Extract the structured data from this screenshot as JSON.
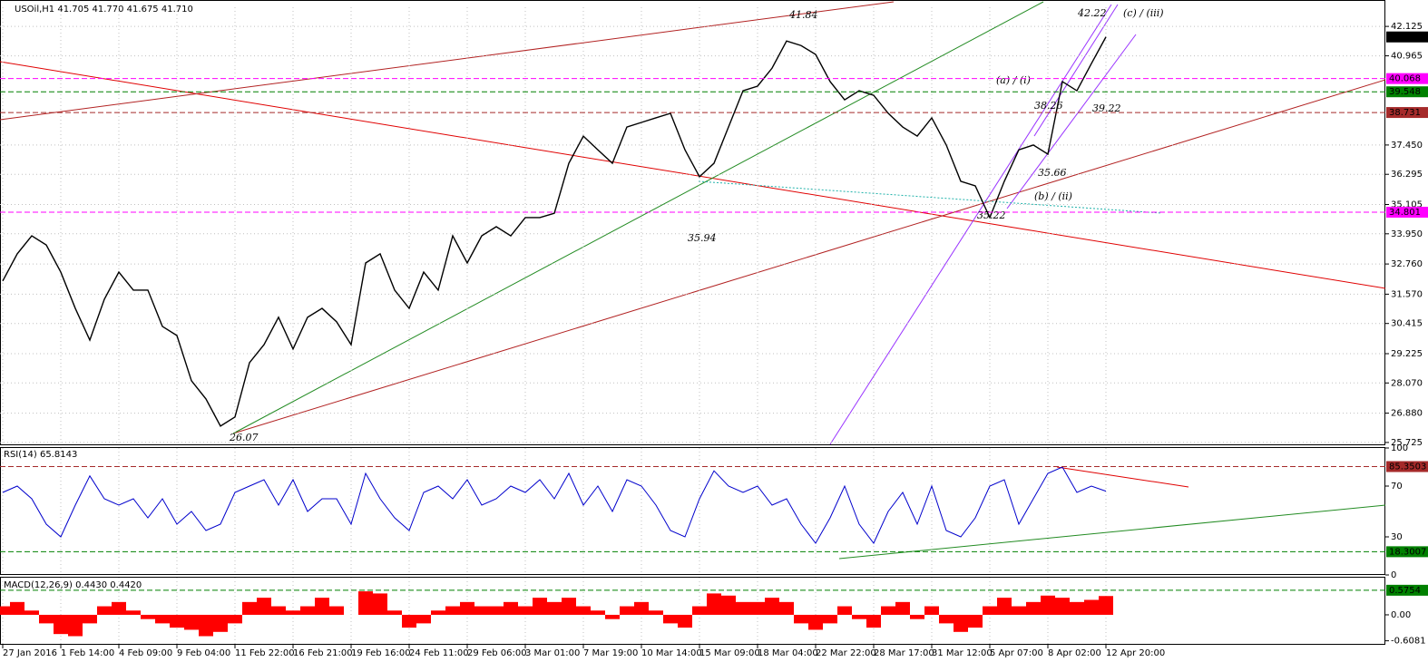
{
  "chart_data": [
    {
      "type": "line",
      "title": "USOil,H1  41.705 41.770 41.675 41.710",
      "color": "#000000",
      "grid": true,
      "x": [
        0,
        4,
        8,
        12,
        16,
        20,
        24,
        28,
        32,
        36,
        40,
        44,
        48,
        52,
        56,
        60,
        64,
        68,
        72,
        76,
        80,
        84,
        88,
        92,
        96,
        100,
        104,
        108,
        112,
        116,
        120,
        124,
        128,
        132,
        136,
        140,
        144,
        148,
        152,
        156,
        160,
        164,
        168,
        172,
        176,
        180,
        184,
        188,
        192,
        196,
        200,
        204,
        208,
        212,
        216,
        220,
        224,
        228,
        232,
        236,
        240,
        244,
        248,
        252,
        256,
        260,
        264,
        268,
        272,
        276,
        280,
        284,
        288,
        292,
        296,
        300,
        304
      ],
      "values": [
        32.09,
        33.16,
        33.87,
        33.51,
        32.44,
        31.01,
        29.76,
        31.37,
        32.44,
        31.73,
        31.73,
        30.3,
        29.94,
        28.16,
        27.44,
        26.37,
        26.73,
        28.87,
        29.58,
        30.66,
        29.41,
        30.66,
        31.01,
        30.48,
        29.58,
        32.8,
        33.16,
        31.73,
        31.01,
        32.44,
        31.73,
        33.87,
        32.8,
        33.87,
        34.23,
        33.87,
        34.59,
        34.59,
        34.76,
        36.73,
        37.8,
        37.26,
        36.73,
        38.16,
        38.34,
        38.52,
        38.7,
        37.26,
        36.2,
        36.73,
        38.16,
        39.59,
        39.77,
        40.48,
        41.55,
        41.37,
        41.02,
        39.95,
        39.23,
        39.59,
        39.41,
        38.7,
        38.16,
        37.8,
        38.52,
        37.45,
        36.02,
        35.84,
        34.59,
        36.02,
        37.26,
        37.45,
        37.09,
        39.95,
        39.59,
        40.66,
        41.71
      ],
      "xlim": [
        -0.75,
        381
      ],
      "xticks": [
        {
          "value": 0,
          "label": "27 Jan 2016"
        },
        {
          "value": 16,
          "label": "1 Feb 14:00"
        },
        {
          "value": 32,
          "label": "4 Feb 09:00"
        },
        {
          "value": 48,
          "label": "9 Feb 04:00"
        },
        {
          "value": 64,
          "label": "11 Feb 22:00"
        },
        {
          "value": 80,
          "label": "16 Feb 21:00"
        },
        {
          "value": 96,
          "label": "19 Feb 16:00"
        },
        {
          "value": 112,
          "label": "24 Feb 11:00"
        },
        {
          "value": 128,
          "label": "29 Feb 06:00"
        },
        {
          "value": 144,
          "label": "3 Mar 01:00"
        },
        {
          "value": 160,
          "label": "7 Mar 19:00"
        },
        {
          "value": 176,
          "label": "10 Mar 14:00"
        },
        {
          "value": 192,
          "label": "15 Mar 09:00"
        },
        {
          "value": 208,
          "label": "18 Mar 04:00"
        },
        {
          "value": 224,
          "label": "22 Mar 22:00"
        },
        {
          "value": 240,
          "label": "28 Mar 17:00"
        },
        {
          "value": 256,
          "label": "31 Mar 12:00"
        },
        {
          "value": 272,
          "label": "5 Apr 07:00"
        },
        {
          "value": 288,
          "label": "8 Apr 02:00"
        },
        {
          "value": 304,
          "label": "12 Apr 20:00"
        }
      ],
      "ylim": [
        25.65,
        42.88
      ],
      "yticks": [
        42.125,
        40.965,
        {
          "value": 37.45,
          "label": "37.450"
        },
        36.295,
        35.105,
        {
          "value": 33.95,
          "label": "33.950"
        },
        {
          "value": 32.76,
          "label": "32.760"
        },
        {
          "value": 31.57,
          "label": "31.570"
        },
        30.415,
        29.225,
        {
          "value": 28.07,
          "label": "28.070"
        },
        {
          "value": 26.88,
          "label": "26.880"
        },
        25.725
      ],
      "levels": [
        {
          "value": 40.068,
          "label": "40.068",
          "color": "#ff00ff"
        },
        {
          "value": 39.548,
          "label": "39.548",
          "color": "#008000"
        },
        {
          "value": 38.731,
          "label": "38.731",
          "color": "#a52a2a"
        },
        {
          "value": 34.801,
          "label": "34.801",
          "color": "#ff00ff"
        }
      ],
      "last_price": {
        "value": 41.71,
        "label": "41.710"
      },
      "annotations": [
        "41.84",
        "42.22",
        "(c) / (iii)",
        "(a) / (i)",
        "38.26",
        "39.22",
        "35.66",
        "(b) / (ii)",
        "35.22",
        "35.94",
        "26.07"
      ]
    },
    {
      "type": "line",
      "title": "RSI(14) 65.8143",
      "color": "#0000cc",
      "values": [
        65,
        70,
        60,
        40,
        30,
        55,
        78,
        60,
        55,
        60,
        45,
        60,
        40,
        50,
        35,
        40,
        65,
        70,
        75,
        55,
        75,
        50,
        60,
        60,
        40,
        80,
        60,
        45,
        35,
        65,
        70,
        60,
        75,
        55,
        60,
        70,
        65,
        75,
        60,
        80,
        55,
        70,
        50,
        75,
        70,
        55,
        35,
        30,
        60,
        82,
        70,
        65,
        70,
        55,
        60,
        40,
        25,
        45,
        70,
        40,
        25,
        50,
        65,
        40,
        70,
        35,
        30,
        45,
        70,
        75,
        40,
        60,
        80,
        85,
        65,
        70,
        66
      ],
      "ylim": [
        0,
        100
      ],
      "yticks": [
        0,
        30,
        70,
        100
      ],
      "levels": [
        {
          "value": 85.3503,
          "label": "85.3503",
          "color": "#a52a2a"
        },
        {
          "value": 18.3007,
          "label": "18.3007",
          "color": "#008000"
        }
      ]
    },
    {
      "type": "bar",
      "title": "MACD(12,26,9) 0.4430 0.4420",
      "color": "#ff0000",
      "values": [
        0.2,
        0.3,
        0.1,
        -0.2,
        -0.45,
        -0.5,
        -0.2,
        0.2,
        0.3,
        0.1,
        -0.1,
        -0.2,
        -0.3,
        -0.35,
        -0.5,
        -0.4,
        -0.2,
        0.3,
        0.4,
        0.2,
        0.1,
        0.2,
        0.4,
        0.2,
        0,
        0.55,
        0.5,
        0.1,
        -0.3,
        -0.2,
        0.1,
        0.2,
        0.3,
        0.2,
        0.2,
        0.3,
        0.2,
        0.4,
        0.3,
        0.4,
        0.2,
        0.1,
        -0.1,
        0.2,
        0.3,
        0.1,
        -0.2,
        -0.3,
        0.2,
        0.5,
        0.45,
        0.3,
        0.3,
        0.4,
        0.3,
        -0.2,
        -0.35,
        -0.2,
        0.2,
        -0.1,
        -0.3,
        0.2,
        0.3,
        -0.1,
        0.2,
        -0.2,
        -0.4,
        -0.3,
        0.2,
        0.4,
        0.2,
        0.3,
        0.45,
        0.4,
        0.3,
        0.35,
        0.44
      ],
      "ylim": [
        -0.68,
        0.87
      ],
      "yticks": [
        {
          "value": 0,
          "label": "0.00"
        },
        {
          "value": -0.6081,
          "label": "-0.6081"
        }
      ],
      "levels": [
        {
          "value": 0.5754,
          "label": "0.5754",
          "color": "#008000"
        }
      ]
    }
  ]
}
